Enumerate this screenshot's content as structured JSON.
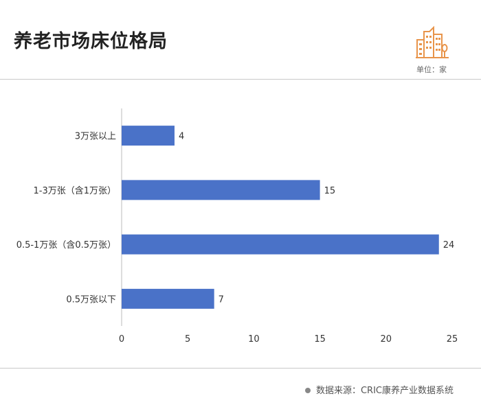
{
  "title": "养老市场床位格局",
  "unit_label": "单位：家",
  "source": "数据来源：CRIC康养产业数据系统",
  "logo_icon": "building-icon",
  "colors": {
    "bar": "#4a72c8",
    "accent": "#e8944a",
    "grid": "#cccccc"
  },
  "chart_data": {
    "type": "bar",
    "orientation": "horizontal",
    "categories": [
      "3万张以上",
      "1-3万张（含1万张）",
      "0.5-1万张（含0.5万张）",
      "0.5万张以下"
    ],
    "values": [
      4,
      15,
      24,
      7
    ],
    "x_ticks": [
      0,
      5,
      10,
      15,
      20,
      25
    ],
    "xlim": [
      0,
      25
    ],
    "grid": false,
    "title": "",
    "xlabel": "",
    "ylabel": ""
  }
}
